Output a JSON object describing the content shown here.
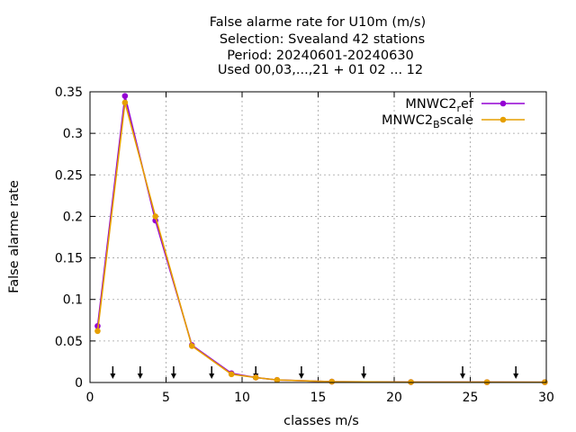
{
  "chart_data": {
    "type": "line",
    "title_lines": [
      "False alarme rate  for U10m (m/s)",
      "Selection: Svealand     42 stations",
      "Period: 20240601-20240630",
      "Used 00,03,...,21 + 01 02 ... 12"
    ],
    "xlabel": "classes m/s",
    "ylabel": "False alarme rate",
    "xlim": [
      0,
      30
    ],
    "ylim": [
      0,
      0.35
    ],
    "xticks": [
      0,
      5,
      10,
      15,
      20,
      25,
      30
    ],
    "yticks": [
      0,
      0.05,
      0.1,
      0.15,
      0.2,
      0.25,
      0.3,
      0.35
    ],
    "xtick_labels": [
      "0",
      "5",
      "10",
      "15",
      "20",
      "25",
      "30"
    ],
    "ytick_labels": [
      "0",
      "0.05",
      "0.1",
      "0.15",
      "0.2",
      "0.25",
      "0.3",
      "0.35"
    ],
    "grid": true,
    "legend_position": "top-right",
    "series": [
      {
        "name": "MNWC2_ref",
        "legend_main": "MNWC2",
        "legend_sub": "r",
        "legend_rest": "ef",
        "color": "#9400d3",
        "x": [
          0.5,
          2.3,
          4.3,
          6.7,
          9.3,
          10.9,
          12.3,
          15.9,
          21.1,
          26.1,
          29.9
        ],
        "y": [
          0.068,
          0.345,
          0.195,
          0.045,
          0.011,
          0.006,
          0.003,
          0.001,
          0.0005,
          0.0004,
          0.0003
        ]
      },
      {
        "name": "MNWC2_Bscale",
        "legend_main": "MNWC2",
        "legend_sub": "B",
        "legend_rest": "scale",
        "color": "#e69f00",
        "x": [
          0.5,
          2.3,
          4.3,
          6.7,
          9.3,
          10.9,
          12.3,
          15.9,
          21.1,
          26.1,
          29.9
        ],
        "y": [
          0.062,
          0.337,
          0.2,
          0.044,
          0.01,
          0.006,
          0.003,
          0.001,
          0.0005,
          0.0004,
          0.0003
        ]
      }
    ],
    "arrow_markers_x": [
      1.5,
      3.3,
      5.5,
      8.0,
      10.9,
      13.9,
      18.0,
      24.5,
      28.0
    ]
  }
}
